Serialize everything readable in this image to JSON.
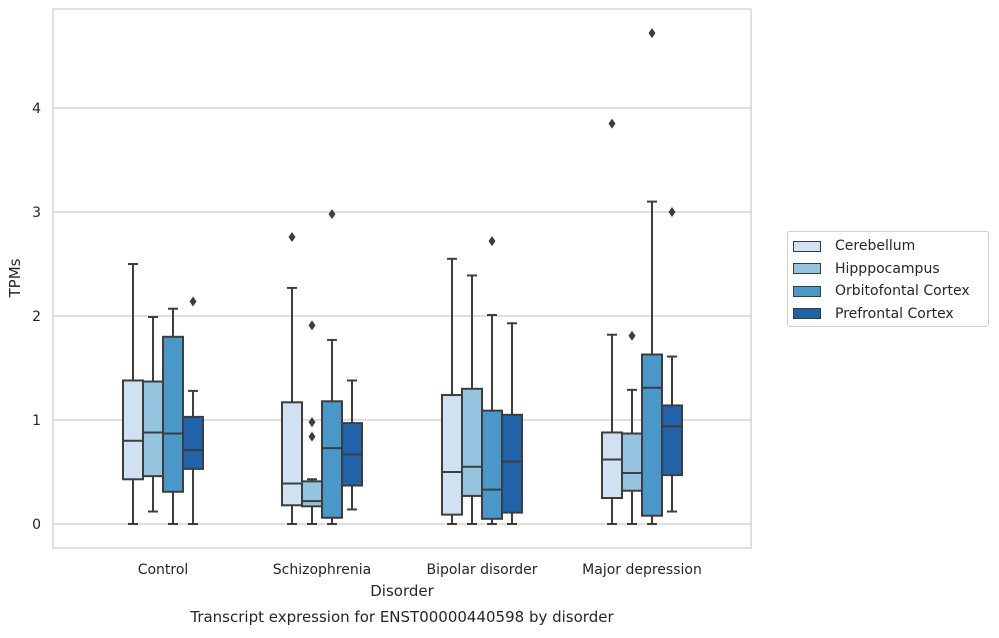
{
  "chart_data": {
    "type": "box",
    "title": "Transcript expression for ENST00000440598 by disorder",
    "xlabel": "Disorder",
    "ylabel": "TPMs",
    "ylim": [
      -0.22,
      4.96
    ],
    "yticks": [
      0,
      1,
      2,
      3,
      4
    ],
    "grid": "horizontal",
    "legend_position": "right",
    "categories": [
      "Control",
      "Schizophrenia",
      "Bipolar disorder",
      "Major depression"
    ],
    "series": [
      {
        "name": "Cerebellum",
        "color": "#d0e1f2",
        "boxes": [
          {
            "whisker_low": 0,
            "q1": 0.43,
            "median": 0.8,
            "q3": 1.38,
            "whisker_high": 2.5,
            "outliers": []
          },
          {
            "whisker_low": 0,
            "q1": 0.18,
            "median": 0.39,
            "q3": 1.17,
            "whisker_high": 2.27,
            "outliers": [
              2.76
            ]
          },
          {
            "whisker_low": 0,
            "q1": 0.09,
            "median": 0.5,
            "q3": 1.24,
            "whisker_high": 2.55,
            "outliers": []
          },
          {
            "whisker_low": 0,
            "q1": 0.25,
            "median": 0.62,
            "q3": 0.88,
            "whisker_high": 1.82,
            "outliers": [
              3.85
            ]
          }
        ]
      },
      {
        "name": "Hipppocampus",
        "color": "#94c4df",
        "boxes": [
          {
            "whisker_low": 0.12,
            "q1": 0.46,
            "median": 0.88,
            "q3": 1.37,
            "whisker_high": 1.99,
            "outliers": []
          },
          {
            "whisker_low": 0,
            "q1": 0.17,
            "median": 0.22,
            "q3": 0.41,
            "whisker_high": 0.43,
            "outliers": [
              0.84,
              0.98,
              1.91
            ]
          },
          {
            "whisker_low": 0,
            "q1": 0.27,
            "median": 0.55,
            "q3": 1.3,
            "whisker_high": 2.39,
            "outliers": []
          },
          {
            "whisker_low": 0,
            "q1": 0.32,
            "median": 0.49,
            "q3": 0.87,
            "whisker_high": 1.29,
            "outliers": [
              1.81
            ]
          }
        ]
      },
      {
        "name": "Orbitofontal Cortex",
        "color": "#4a98c9",
        "boxes": [
          {
            "whisker_low": 0,
            "q1": 0.31,
            "median": 0.87,
            "q3": 1.8,
            "whisker_high": 2.07,
            "outliers": []
          },
          {
            "whisker_low": 0,
            "q1": 0.06,
            "median": 0.73,
            "q3": 1.18,
            "whisker_high": 1.77,
            "outliers": [
              2.98
            ]
          },
          {
            "whisker_low": 0,
            "q1": 0.05,
            "median": 0.33,
            "q3": 1.09,
            "whisker_high": 2.01,
            "outliers": [
              2.72
            ]
          },
          {
            "whisker_low": 0,
            "q1": 0.08,
            "median": 1.31,
            "q3": 1.63,
            "whisker_high": 3.1,
            "outliers": [
              4.72
            ]
          }
        ]
      },
      {
        "name": "Prefrontal Cortex",
        "color": "#2163aa",
        "boxes": [
          {
            "whisker_low": 0,
            "q1": 0.53,
            "median": 0.71,
            "q3": 1.03,
            "whisker_high": 1.28,
            "outliers": [
              2.14
            ]
          },
          {
            "whisker_low": 0.14,
            "q1": 0.37,
            "median": 0.67,
            "q3": 0.97,
            "whisker_high": 1.38,
            "outliers": []
          },
          {
            "whisker_low": 0,
            "q1": 0.11,
            "median": 0.6,
            "q3": 1.05,
            "whisker_high": 1.93,
            "outliers": []
          },
          {
            "whisker_low": 0.12,
            "q1": 0.47,
            "median": 0.94,
            "q3": 1.14,
            "whisker_high": 1.61,
            "outliers": [
              3.0
            ]
          }
        ]
      }
    ]
  }
}
